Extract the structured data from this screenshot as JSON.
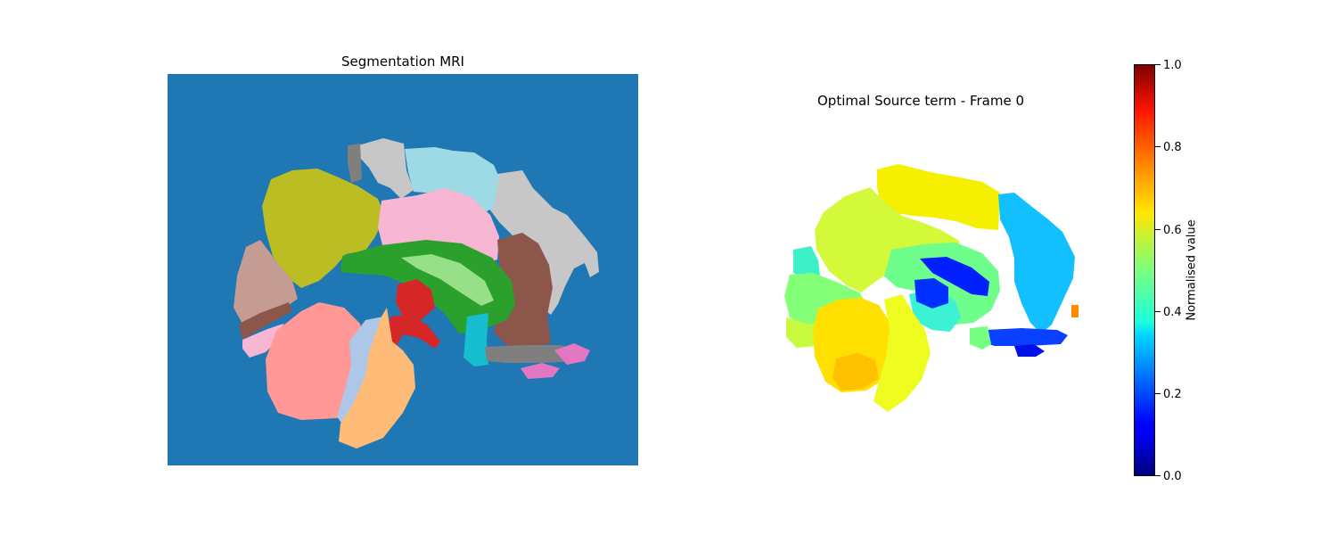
{
  "panels": {
    "segmentation": {
      "title": "Segmentation MRI",
      "background_color": "#1f77b4"
    },
    "source": {
      "title": "Optimal Source term - Frame 0"
    }
  },
  "colorbar": {
    "label": "Normalised value",
    "colormap": "jet",
    "range": [
      0,
      1
    ],
    "ticks": [
      "0.0",
      "0.2",
      "0.4",
      "0.6",
      "0.8",
      "1.0"
    ]
  },
  "colors": {
    "olive": "#bcbd22",
    "pink": "#f7b6d2",
    "green": "#2ca02c",
    "light_green": "#98df8a",
    "red": "#d62728",
    "brown": "#8c564b",
    "gray": "#7f7f7f",
    "light_gray": "#c7c7c7",
    "light_blue": "#9edae5",
    "cyan": "#17becf",
    "salmon": "#ff9896",
    "orange": "#ffbb78",
    "lavender": "#aec7e8",
    "magenta": "#e377c2",
    "taupe": "#c49c94"
  }
}
